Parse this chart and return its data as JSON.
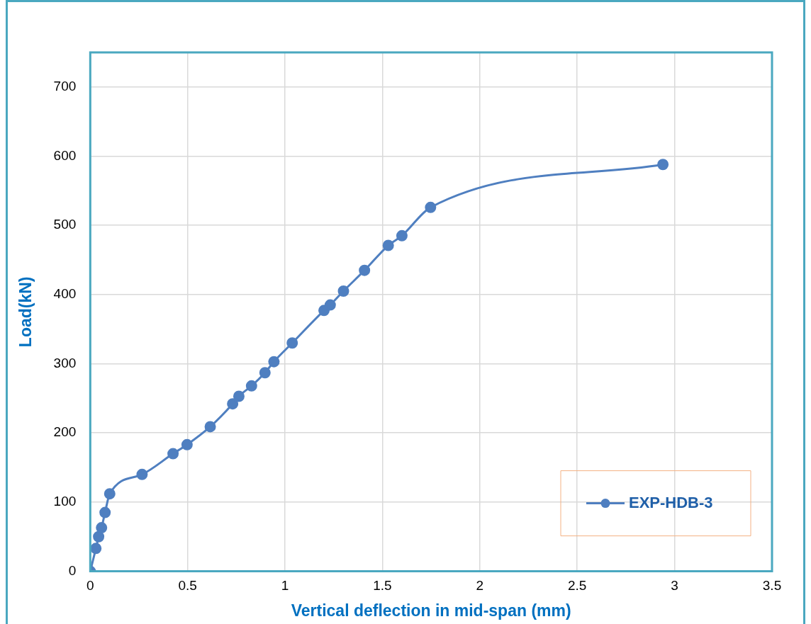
{
  "chart_data": {
    "type": "line",
    "xlabel": "Vertical deflection in mid-span (mm)",
    "ylabel": "Load(kN)",
    "xlim": [
      0,
      3.5
    ],
    "xticks": [
      0,
      0.5,
      1,
      1.5,
      2,
      2.5,
      3,
      3.5
    ],
    "ylim": [
      0,
      750
    ],
    "yticks": [
      0,
      100,
      200,
      300,
      400,
      500,
      600,
      700
    ],
    "grid": true,
    "legend": "bottom right",
    "marker": "circle",
    "line_style": "solid",
    "series": [
      {
        "name": "EXP-HDB-3",
        "color": "#4f7fc0",
        "x": [
          0,
          0.029,
          0.043,
          0.058,
          0.076,
          0.1,
          0.266,
          0.425,
          0.497,
          0.616,
          0.731,
          0.763,
          0.828,
          0.897,
          0.943,
          1.037,
          1.2,
          1.232,
          1.3,
          1.408,
          1.53,
          1.6,
          1.747,
          2.94
        ],
        "values": [
          0,
          33,
          50,
          63,
          85,
          112,
          140,
          170,
          183,
          209,
          242,
          253,
          268,
          287,
          303,
          330,
          377,
          385,
          405,
          435,
          471,
          485,
          526,
          588
        ]
      }
    ]
  }
}
